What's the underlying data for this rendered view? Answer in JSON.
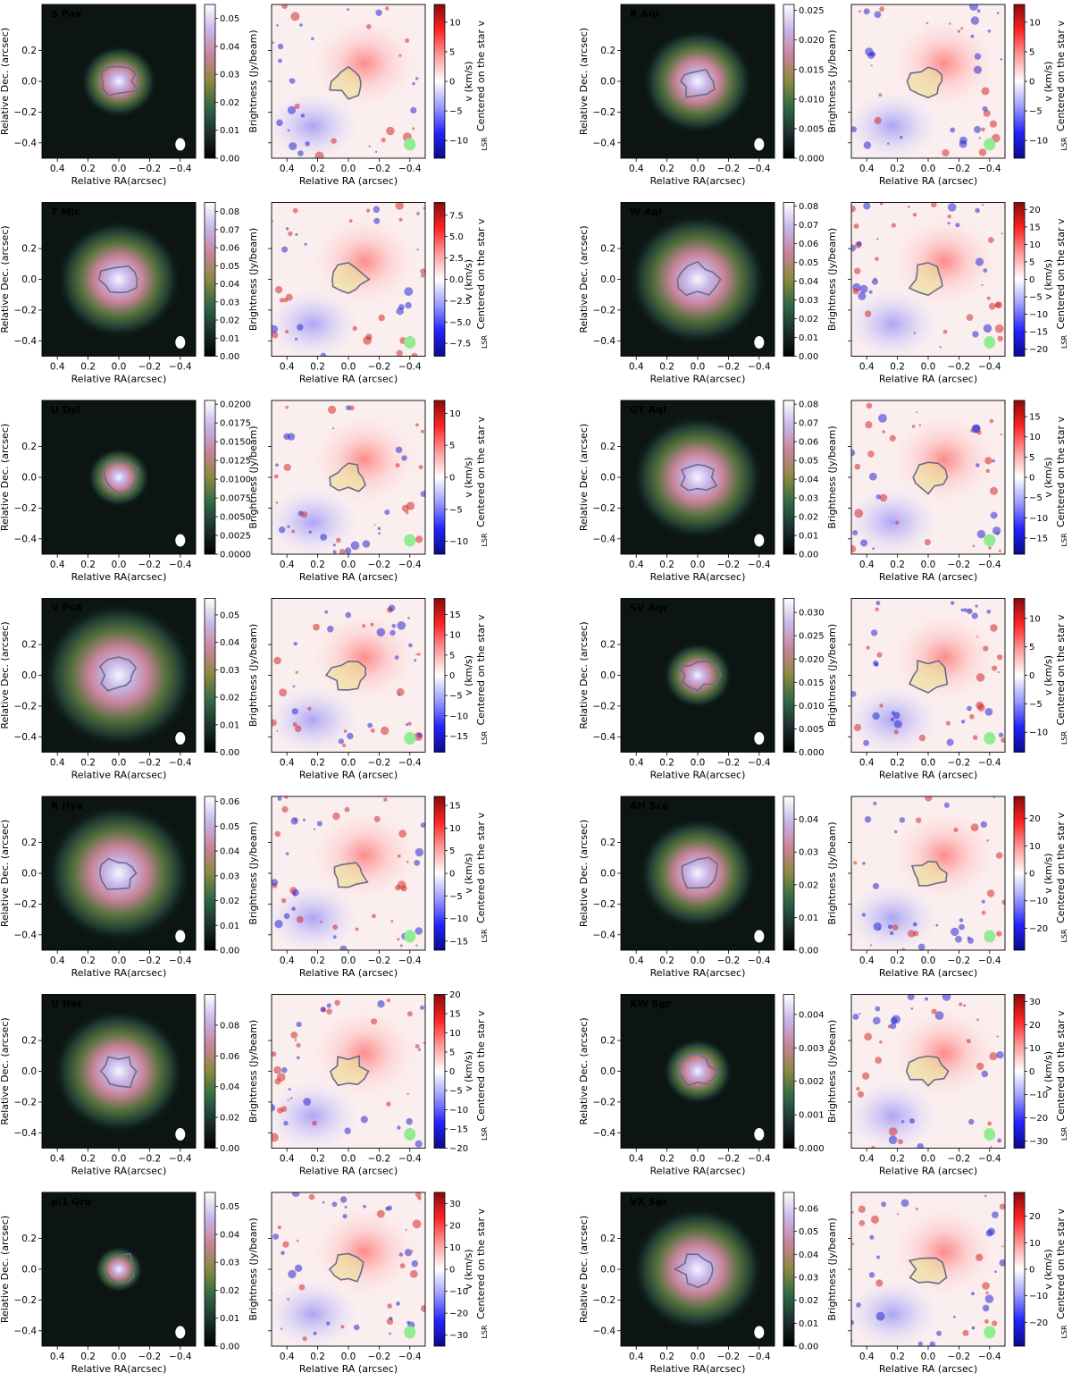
{
  "figure": {
    "intensity_colorbar_label": "Brightness (Jy/beam)",
    "velocity_colorbar_label_line1": "v (km/s)",
    "velocity_colorbar_label_line2": "Centered on the star v",
    "velocity_colorbar_label_sub": "LSR",
    "intensity_xlabel": "Relative RA(arcsec)",
    "velocity_xlabel": "Relative RA (arcsec)",
    "ylabel": "Relative Dec. (arcsec)",
    "x_ticks": [
      "0.4",
      "0.2",
      "0.0",
      "−0.2",
      "−0.4"
    ],
    "y_ticks": [
      "0.2",
      "0.0",
      "−0.2",
      "−0.4"
    ],
    "colors": {
      "intensity_cmap": [
        "#000000",
        "#1c2f30",
        "#2f6a45",
        "#8a8a3e",
        "#c9849a",
        "#c7b6e8",
        "#ffffff"
      ],
      "velocity_cmap": [
        "#0a0a8a",
        "#2323ff",
        "#9b9bff",
        "#ffffff",
        "#ff9b9b",
        "#ff2323",
        "#8a0a0a"
      ],
      "beam_intensity": "#ffffff",
      "beam_velocity": "#90ee90",
      "contour": "#6b6b8c"
    }
  },
  "chart_data": [
    {
      "star": "S Pav",
      "type": "heatmap",
      "xlim": [
        0.5,
        -0.5
      ],
      "ylim": [
        -0.5,
        0.5
      ],
      "intensity_ticks": [
        "0.00",
        "0.01",
        "0.02",
        "0.03",
        "0.04",
        "0.05"
      ],
      "intensity_range": [
        0,
        0.055
      ],
      "velocity_ticks": [
        "10",
        "5",
        "0",
        "−5",
        "−10"
      ],
      "velocity_range": [
        -13,
        13
      ]
    },
    {
      "star": "R Aql",
      "type": "heatmap",
      "xlim": [
        0.5,
        -0.5
      ],
      "ylim": [
        -0.5,
        0.5
      ],
      "intensity_ticks": [
        "0.000",
        "0.005",
        "0.010",
        "0.015",
        "0.020",
        "0.025"
      ],
      "intensity_range": [
        0,
        0.026
      ],
      "velocity_ticks": [
        "10",
        "5",
        "0",
        "−5",
        "−10"
      ],
      "velocity_range": [
        -13,
        13
      ]
    },
    {
      "star": "T Mic",
      "type": "heatmap",
      "xlim": [
        0.5,
        -0.5
      ],
      "ylim": [
        -0.5,
        0.5
      ],
      "intensity_ticks": [
        "0.00",
        "0.01",
        "0.02",
        "0.03",
        "0.04",
        "0.05",
        "0.06",
        "0.07",
        "0.08"
      ],
      "intensity_range": [
        0,
        0.085
      ],
      "velocity_ticks": [
        "7.5",
        "5.0",
        "2.5",
        "0.0",
        "−2.5",
        "−5.0",
        "−7.5"
      ],
      "velocity_range": [
        -9,
        9
      ]
    },
    {
      "star": "W Aql",
      "type": "heatmap",
      "xlim": [
        0.5,
        -0.5
      ],
      "ylim": [
        -0.5,
        0.5
      ],
      "intensity_ticks": [
        "0.00",
        "0.01",
        "0.02",
        "0.03",
        "0.04",
        "0.05",
        "0.06",
        "0.07",
        "0.08"
      ],
      "intensity_range": [
        0,
        0.082
      ],
      "velocity_ticks": [
        "20",
        "15",
        "10",
        "5",
        "0",
        "−5",
        "−10",
        "−15",
        "−20"
      ],
      "velocity_range": [
        -22,
        22
      ]
    },
    {
      "star": "U Del",
      "type": "heatmap",
      "xlim": [
        0.5,
        -0.5
      ],
      "ylim": [
        -0.5,
        0.5
      ],
      "intensity_ticks": [
        "0.0000",
        "0.0025",
        "0.0050",
        "0.0075",
        "0.0100",
        "0.0125",
        "0.0150",
        "0.0175",
        "0.0200"
      ],
      "intensity_range": [
        0,
        0.0205
      ],
      "velocity_ticks": [
        "10",
        "5",
        "0",
        "−5",
        "−10"
      ],
      "velocity_range": [
        -12,
        12
      ]
    },
    {
      "star": "GY Aql",
      "type": "heatmap",
      "xlim": [
        0.5,
        -0.5
      ],
      "ylim": [
        -0.5,
        0.5
      ],
      "intensity_ticks": [
        "0.00",
        "0.01",
        "0.02",
        "0.03",
        "0.04",
        "0.05",
        "0.06",
        "0.07",
        "0.08"
      ],
      "intensity_range": [
        0,
        0.082
      ],
      "velocity_ticks": [
        "15",
        "10",
        "5",
        "0",
        "−5",
        "−10",
        "−15"
      ],
      "velocity_range": [
        -19,
        19
      ]
    },
    {
      "star": "V PsA",
      "type": "heatmap",
      "xlim": [
        0.5,
        -0.5
      ],
      "ylim": [
        -0.5,
        0.5
      ],
      "intensity_ticks": [
        "0.00",
        "0.01",
        "0.02",
        "0.03",
        "0.04",
        "0.05"
      ],
      "intensity_range": [
        0,
        0.056
      ],
      "velocity_ticks": [
        "15",
        "10",
        "5",
        "0",
        "−5",
        "−10",
        "−15"
      ],
      "velocity_range": [
        -19,
        19
      ]
    },
    {
      "star": "SV Aqr",
      "type": "heatmap",
      "xlim": [
        0.5,
        -0.5
      ],
      "ylim": [
        -0.5,
        0.5
      ],
      "intensity_ticks": [
        "0.000",
        "0.005",
        "0.010",
        "0.015",
        "0.020",
        "0.025",
        "0.030"
      ],
      "intensity_range": [
        0,
        0.033
      ],
      "velocity_ticks": [
        "10",
        "5",
        "0",
        "−5",
        "−10"
      ],
      "velocity_range": [
        -13.5,
        13.5
      ]
    },
    {
      "star": "R Hya",
      "type": "heatmap",
      "xlim": [
        0.5,
        -0.5
      ],
      "ylim": [
        -0.5,
        0.5
      ],
      "intensity_ticks": [
        "0.00",
        "0.01",
        "0.02",
        "0.03",
        "0.04",
        "0.05",
        "0.06"
      ],
      "intensity_range": [
        0,
        0.062
      ],
      "velocity_ticks": [
        "15",
        "10",
        "5",
        "0",
        "−5",
        "−10",
        "−15"
      ],
      "velocity_range": [
        -17,
        17
      ]
    },
    {
      "star": "AH Sco",
      "type": "heatmap",
      "xlim": [
        0.5,
        -0.5
      ],
      "ylim": [
        -0.5,
        0.5
      ],
      "intensity_ticks": [
        "0.00",
        "0.01",
        "0.02",
        "0.03",
        "0.04"
      ],
      "intensity_range": [
        0,
        0.047
      ],
      "velocity_ticks": [
        "20",
        "10",
        "0",
        "−10",
        "−20"
      ],
      "velocity_range": [
        -28,
        28
      ]
    },
    {
      "star": "U Her",
      "type": "heatmap",
      "xlim": [
        0.5,
        -0.5
      ],
      "ylim": [
        -0.5,
        0.5
      ],
      "intensity_ticks": [
        "0.00",
        "0.02",
        "0.04",
        "0.06",
        "0.08"
      ],
      "intensity_range": [
        0,
        0.1
      ],
      "velocity_ticks": [
        "20",
        "15",
        "10",
        "5",
        "0",
        "−5",
        "−10",
        "−15",
        "−20"
      ],
      "velocity_range": [
        -20,
        20
      ]
    },
    {
      "star": "KW Sgr",
      "type": "heatmap",
      "xlim": [
        0.5,
        -0.5
      ],
      "ylim": [
        -0.5,
        0.5
      ],
      "intensity_ticks": [
        "0.000",
        "0.001",
        "0.002",
        "0.003",
        "0.004"
      ],
      "intensity_range": [
        0,
        0.0046
      ],
      "velocity_ticks": [
        "30",
        "20",
        "10",
        "0",
        "−10",
        "−20",
        "−30"
      ],
      "velocity_range": [
        -33,
        33
      ]
    },
    {
      "star": "pi1 Gru",
      "type": "heatmap",
      "xlim": [
        0.5,
        -0.5
      ],
      "ylim": [
        -0.5,
        0.5
      ],
      "intensity_ticks": [
        "0.00",
        "0.01",
        "0.02",
        "0.03",
        "0.04",
        "0.05"
      ],
      "intensity_range": [
        0,
        0.055
      ],
      "velocity_ticks": [
        "30",
        "20",
        "10",
        "0",
        "−10",
        "−20",
        "−30"
      ],
      "velocity_range": [
        -35,
        35
      ]
    },
    {
      "star": "VX Sgr",
      "type": "heatmap",
      "xlim": [
        0.5,
        -0.5
      ],
      "ylim": [
        -0.5,
        0.5
      ],
      "intensity_ticks": [
        "0.00",
        "0.01",
        "0.02",
        "0.03",
        "0.04",
        "0.05",
        "0.06"
      ],
      "intensity_range": [
        0,
        0.067
      ],
      "velocity_ticks": [
        "20",
        "10",
        "0",
        "−10",
        "−20"
      ],
      "velocity_range": [
        -29,
        29
      ]
    }
  ]
}
